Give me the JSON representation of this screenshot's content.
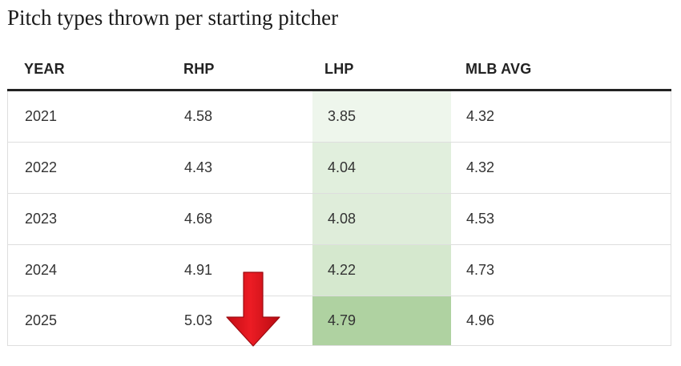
{
  "title": "Pitch types thrown per starting pitcher",
  "colors": {
    "header_rule": "#222222",
    "row_border": "#dedede",
    "arrow": "#e0121b",
    "lhp_scale_low": "#eef6ec",
    "lhp_scale_high": "#afd2a1"
  },
  "icons": {
    "highlight_arrow": "down-arrow-icon"
  },
  "chart_data": {
    "type": "table",
    "columns": [
      "YEAR",
      "RHP",
      "LHP",
      "MLB AVG"
    ],
    "rows": [
      {
        "year": "2021",
        "rhp": "4.58",
        "lhp": "3.85",
        "mlb": "4.32"
      },
      {
        "year": "2022",
        "rhp": "4.43",
        "lhp": "4.04",
        "mlb": "4.32"
      },
      {
        "year": "2023",
        "rhp": "4.68",
        "lhp": "4.08",
        "mlb": "4.53"
      },
      {
        "year": "2024",
        "rhp": "4.91",
        "lhp": "4.22",
        "mlb": "4.73"
      },
      {
        "year": "2025",
        "rhp": "5.03",
        "lhp": "4.79",
        "mlb": "4.96"
      }
    ],
    "heatmap_column": "LHP"
  }
}
